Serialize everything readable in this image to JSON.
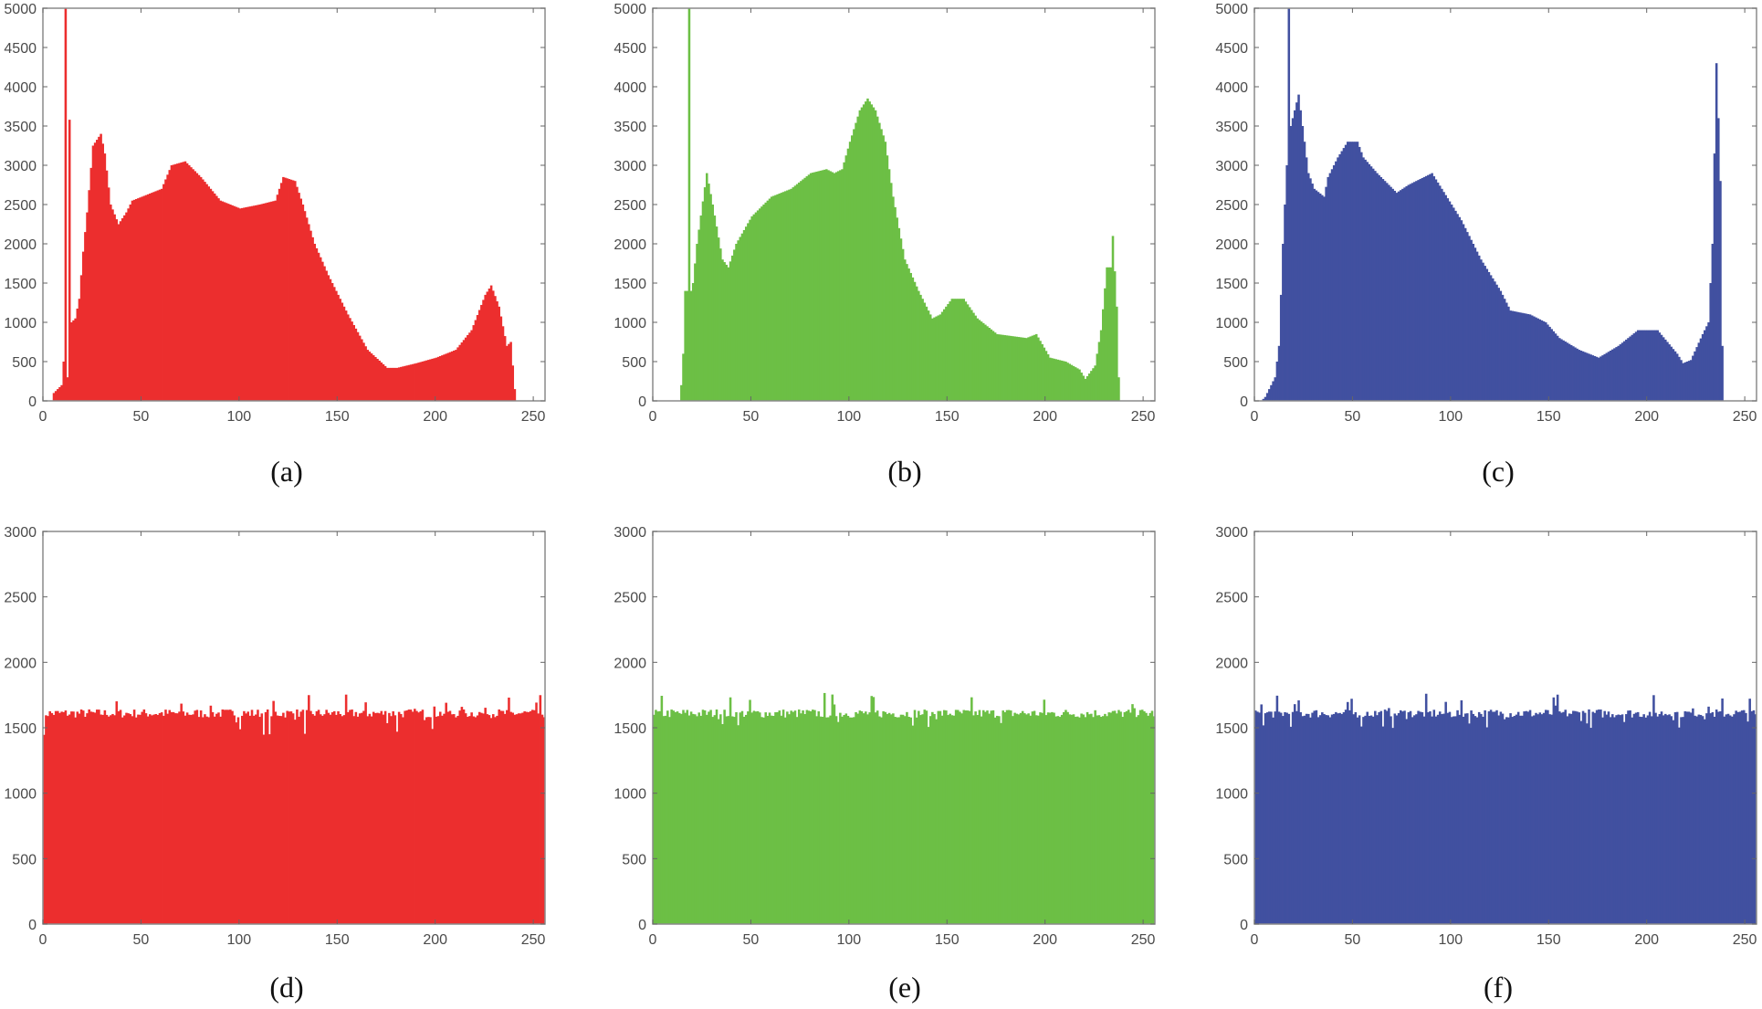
{
  "chart_data": [
    {
      "id": "a",
      "type": "bar",
      "caption": "(a)",
      "color": "#ec2e2e",
      "xlim": [
        0,
        256
      ],
      "ylim": [
        0,
        5000
      ],
      "xticks": [
        0,
        50,
        100,
        150,
        200,
        250
      ],
      "yticks": [
        0,
        500,
        1000,
        1500,
        2000,
        2500,
        3000,
        3500,
        4000,
        4500,
        5000
      ],
      "grid": false,
      "envelope": [
        [
          0,
          0
        ],
        [
          4,
          0
        ],
        [
          5,
          100
        ],
        [
          9,
          200
        ],
        [
          10,
          500
        ],
        [
          11,
          5000
        ],
        [
          12,
          300
        ],
        [
          13,
          3580
        ],
        [
          14,
          1000
        ],
        [
          16,
          1050
        ],
        [
          18,
          1300
        ],
        [
          20,
          1900
        ],
        [
          22,
          2400
        ],
        [
          25,
          3250
        ],
        [
          29,
          3400
        ],
        [
          31,
          3150
        ],
        [
          34,
          2500
        ],
        [
          38,
          2250
        ],
        [
          42,
          2400
        ],
        [
          45,
          2550
        ],
        [
          50,
          2600
        ],
        [
          60,
          2700
        ],
        [
          65,
          3000
        ],
        [
          72,
          3050
        ],
        [
          80,
          2850
        ],
        [
          90,
          2550
        ],
        [
          100,
          2450
        ],
        [
          110,
          2500
        ],
        [
          118,
          2550
        ],
        [
          122,
          2850
        ],
        [
          128,
          2800
        ],
        [
          132,
          2500
        ],
        [
          138,
          2000
        ],
        [
          145,
          1600
        ],
        [
          155,
          1100
        ],
        [
          165,
          650
        ],
        [
          175,
          420
        ],
        [
          180,
          420
        ],
        [
          190,
          480
        ],
        [
          200,
          550
        ],
        [
          210,
          650
        ],
        [
          218,
          900
        ],
        [
          225,
          1350
        ],
        [
          228,
          1470
        ],
        [
          232,
          1200
        ],
        [
          236,
          700
        ],
        [
          238,
          750
        ],
        [
          240,
          150
        ],
        [
          241,
          0
        ],
        [
          255,
          0
        ]
      ]
    },
    {
      "id": "b",
      "type": "bar",
      "caption": "(b)",
      "color": "#6cbf45",
      "xlim": [
        0,
        256
      ],
      "ylim": [
        0,
        5000
      ],
      "xticks": [
        0,
        50,
        100,
        150,
        200,
        250
      ],
      "yticks": [
        0,
        500,
        1000,
        1500,
        2000,
        2500,
        3000,
        3500,
        4000,
        4500,
        5000
      ],
      "grid": false,
      "envelope": [
        [
          0,
          0
        ],
        [
          13,
          0
        ],
        [
          14,
          200
        ],
        [
          15,
          600
        ],
        [
          16,
          1400
        ],
        [
          17,
          1400
        ],
        [
          18,
          5000
        ],
        [
          19,
          1400
        ],
        [
          20,
          1500
        ],
        [
          22,
          2000
        ],
        [
          27,
          2900
        ],
        [
          30,
          2500
        ],
        [
          35,
          1800
        ],
        [
          38,
          1700
        ],
        [
          42,
          2000
        ],
        [
          50,
          2350
        ],
        [
          60,
          2600
        ],
        [
          70,
          2700
        ],
        [
          80,
          2900
        ],
        [
          88,
          2950
        ],
        [
          92,
          2900
        ],
        [
          96,
          2950
        ],
        [
          100,
          3300
        ],
        [
          105,
          3700
        ],
        [
          109,
          3850
        ],
        [
          113,
          3700
        ],
        [
          118,
          3300
        ],
        [
          122,
          2600
        ],
        [
          128,
          1800
        ],
        [
          135,
          1400
        ],
        [
          142,
          1050
        ],
        [
          146,
          1100
        ],
        [
          152,
          1300
        ],
        [
          158,
          1300
        ],
        [
          165,
          1050
        ],
        [
          175,
          850
        ],
        [
          190,
          800
        ],
        [
          195,
          850
        ],
        [
          202,
          550
        ],
        [
          210,
          500
        ],
        [
          217,
          400
        ],
        [
          220,
          280
        ],
        [
          225,
          450
        ],
        [
          228,
          900
        ],
        [
          231,
          1700
        ],
        [
          233,
          1700
        ],
        [
          234,
          2100
        ],
        [
          236,
          1200
        ],
        [
          237,
          300
        ],
        [
          238,
          0
        ],
        [
          255,
          0
        ]
      ]
    },
    {
      "id": "c",
      "type": "bar",
      "caption": "(c)",
      "color": "#4150a0",
      "xlim": [
        0,
        256
      ],
      "ylim": [
        0,
        5000
      ],
      "xticks": [
        0,
        50,
        100,
        150,
        200,
        250
      ],
      "yticks": [
        0,
        500,
        1000,
        1500,
        2000,
        2500,
        3000,
        3500,
        4000,
        4500,
        5000
      ],
      "grid": false,
      "envelope": [
        [
          0,
          0
        ],
        [
          3,
          0
        ],
        [
          5,
          50
        ],
        [
          10,
          300
        ],
        [
          12,
          700
        ],
        [
          14,
          2000
        ],
        [
          16,
          3000
        ],
        [
          17,
          5000
        ],
        [
          18,
          3500
        ],
        [
          20,
          3700
        ],
        [
          22,
          3900
        ],
        [
          24,
          3500
        ],
        [
          27,
          2900
        ],
        [
          30,
          2700
        ],
        [
          35,
          2600
        ],
        [
          37,
          2850
        ],
        [
          42,
          3100
        ],
        [
          47,
          3300
        ],
        [
          52,
          3300
        ],
        [
          55,
          3100
        ],
        [
          62,
          2900
        ],
        [
          72,
          2650
        ],
        [
          78,
          2750
        ],
        [
          90,
          2900
        ],
        [
          95,
          2700
        ],
        [
          105,
          2300
        ],
        [
          115,
          1800
        ],
        [
          125,
          1400
        ],
        [
          130,
          1150
        ],
        [
          140,
          1100
        ],
        [
          148,
          1000
        ],
        [
          155,
          800
        ],
        [
          165,
          650
        ],
        [
          175,
          550
        ],
        [
          185,
          700
        ],
        [
          195,
          900
        ],
        [
          205,
          900
        ],
        [
          215,
          600
        ],
        [
          218,
          480
        ],
        [
          222,
          520
        ],
        [
          228,
          850
        ],
        [
          231,
          1000
        ],
        [
          233,
          2000
        ],
        [
          235,
          4300
        ],
        [
          236,
          3600
        ],
        [
          237,
          2800
        ],
        [
          238,
          700
        ],
        [
          239,
          0
        ],
        [
          255,
          0
        ]
      ]
    },
    {
      "id": "d",
      "type": "bar",
      "caption": "(d)",
      "color": "#ec2e2e",
      "xlim": [
        0,
        256
      ],
      "ylim": [
        0,
        3000
      ],
      "xticks": [
        0,
        50,
        100,
        150,
        200,
        250
      ],
      "yticks": [
        0,
        500,
        1000,
        1500,
        2000,
        2500,
        3000
      ],
      "grid": false,
      "level": 1610,
      "min": 1470,
      "max": 1720
    },
    {
      "id": "e",
      "type": "bar",
      "caption": "(e)",
      "color": "#6cbf45",
      "xlim": [
        0,
        256
      ],
      "ylim": [
        0,
        3000
      ],
      "xticks": [
        0,
        50,
        100,
        150,
        200,
        250
      ],
      "yticks": [
        0,
        500,
        1000,
        1500,
        2000,
        2500,
        3000
      ],
      "grid": false,
      "level": 1610,
      "min": 1540,
      "max": 1740
    },
    {
      "id": "f",
      "type": "bar",
      "caption": "(f)",
      "color": "#4150a0",
      "xlim": [
        0,
        256
      ],
      "ylim": [
        0,
        3000
      ],
      "xticks": [
        0,
        50,
        100,
        150,
        200,
        250
      ],
      "yticks": [
        0,
        500,
        1000,
        1500,
        2000,
        2500,
        3000
      ],
      "grid": false,
      "level": 1610,
      "min": 1530,
      "max": 1730
    }
  ]
}
